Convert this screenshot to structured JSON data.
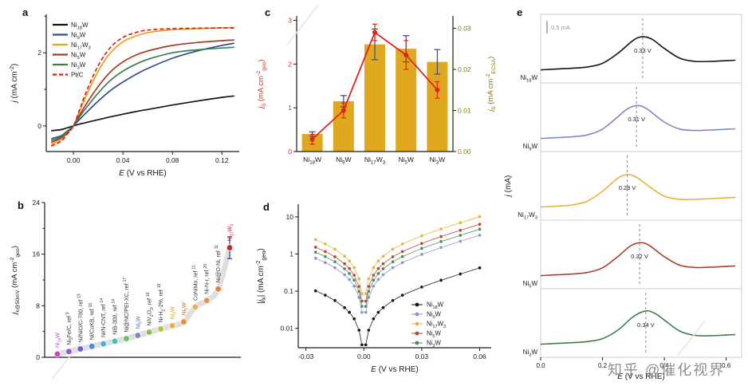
{
  "watermark": {
    "text": "知乎 @催化视界",
    "color": "#8f8f8f"
  },
  "chart_data": [
    {
      "panel": "a",
      "type": "line",
      "xlabel": "*{E} (V vs RHE)",
      "ylabel": "*{j} (mA cm^{-2})",
      "xlim": [
        -0.022,
        0.134
      ],
      "ylim": [
        -0.7,
        3.05
      ],
      "xticks": [
        0,
        0.04,
        0.08,
        0.12
      ],
      "xtick_labels": [
        "0.00",
        "0.04",
        "0.08",
        "0.12"
      ],
      "yticks": [
        0,
        2
      ],
      "yticks_minor": [
        1,
        3
      ],
      "series": [
        {
          "name": "Ni_{18}W",
          "color": "#141414",
          "dash": "none",
          "x": [
            -0.018,
            -0.01,
            -0.005,
            0,
            0.005,
            0.01,
            0.02,
            0.03,
            0.04,
            0.05,
            0.06,
            0.08,
            0.1,
            0.12,
            0.13
          ],
          "y": [
            -0.13,
            -0.1,
            -0.05,
            0,
            0.05,
            0.09,
            0.17,
            0.25,
            0.32,
            0.39,
            0.45,
            0.57,
            0.68,
            0.78,
            0.82
          ]
        },
        {
          "name": "Ni_{9}W",
          "color": "#2f4f8f",
          "dash": "none",
          "x": [
            -0.018,
            -0.01,
            -0.005,
            0,
            0.005,
            0.01,
            0.02,
            0.03,
            0.04,
            0.05,
            0.06,
            0.08,
            0.1,
            0.12,
            0.13
          ],
          "y": [
            -0.35,
            -0.27,
            -0.14,
            0,
            0.18,
            0.35,
            0.68,
            0.97,
            1.2,
            1.4,
            1.57,
            1.85,
            2.05,
            2.2,
            2.26
          ]
        },
        {
          "name": "Ni_{17}W_{3}",
          "color": "#e8a01e",
          "dash": "none",
          "x": [
            -0.018,
            -0.01,
            -0.005,
            0,
            0.005,
            0.01,
            0.02,
            0.03,
            0.04,
            0.05,
            0.06,
            0.08,
            0.1,
            0.12,
            0.13
          ],
          "y": [
            -0.5,
            -0.38,
            -0.2,
            0,
            0.4,
            0.8,
            1.5,
            2.0,
            2.3,
            2.45,
            2.55,
            2.63,
            2.66,
            2.68,
            2.68
          ]
        },
        {
          "name": "Ni_{5}W",
          "color": "#a63a24",
          "dash": "none",
          "x": [
            -0.018,
            -0.01,
            -0.005,
            0,
            0.005,
            0.01,
            0.02,
            0.03,
            0.04,
            0.05,
            0.06,
            0.08,
            0.1,
            0.12,
            0.13
          ],
          "y": [
            -0.45,
            -0.33,
            -0.17,
            0,
            0.3,
            0.58,
            1.08,
            1.48,
            1.75,
            1.93,
            2.05,
            2.2,
            2.28,
            2.33,
            2.35
          ]
        },
        {
          "name": "Ni_{3}W",
          "color": "#3e7d4e",
          "dash": "none",
          "x": [
            -0.018,
            -0.01,
            -0.005,
            0,
            0.005,
            0.01,
            0.02,
            0.03,
            0.04,
            0.05,
            0.06,
            0.08,
            0.1,
            0.12,
            0.13
          ],
          "y": [
            -0.4,
            -0.3,
            -0.15,
            0,
            0.25,
            0.48,
            0.9,
            1.25,
            1.5,
            1.68,
            1.82,
            2.0,
            2.08,
            2.13,
            2.15
          ]
        },
        {
          "name": "Pt/C",
          "color": "#e01e14",
          "dash": "5,3",
          "x": [
            -0.018,
            -0.01,
            -0.005,
            0,
            0.005,
            0.01,
            0.02,
            0.03,
            0.04,
            0.05,
            0.06,
            0.08,
            0.1,
            0.12,
            0.13
          ],
          "y": [
            -0.55,
            -0.42,
            -0.22,
            0,
            0.45,
            0.9,
            1.65,
            2.15,
            2.42,
            2.55,
            2.62,
            2.66,
            2.67,
            2.68,
            2.68
          ]
        }
      ]
    },
    {
      "panel": "b",
      "type": "scatter",
      "ylabel": "*{j}_{k@50mV} (mA cm^{-2}_{geo})",
      "ylim": [
        0,
        24
      ],
      "yticks": [
        0,
        8,
        16,
        24
      ],
      "yticks_minor": [
        4,
        12,
        20
      ],
      "trend_color": "#d4d4d4",
      "points": [
        {
          "label": "Ni_{18}W",
          "value": 0.5,
          "color": "#c24bc2",
          "label_color": "#c24bc2"
        },
        {
          "label": "Ni_{3}Fe/C, ref ^{9}",
          "value": 0.9,
          "color": "#9357cf",
          "label_color": "#333333"
        },
        {
          "label": "Ni/NiO/C-700, ref ^{13}",
          "value": 1.3,
          "color": "#6a5fd8",
          "label_color": "#333333"
        },
        {
          "label": "Ni/CuKB, ref ^{10}",
          "value": 1.7,
          "color": "#4f86e0",
          "label_color": "#333333"
        },
        {
          "label": "Ni/N-CNT, ref ^{14}",
          "value": 2.1,
          "color": "#41b4da",
          "label_color": "#333333"
        },
        {
          "label": "NiB-300, ref ^{14}",
          "value": 2.5,
          "color": "#3fc4a6",
          "label_color": "#333333"
        },
        {
          "label": "Ni@NC/PEI-XC, ref ^{17}",
          "value": 2.9,
          "color": "#63c463",
          "label_color": "#333333"
        },
        {
          "label": "Ni_{9}W",
          "value": 3.4,
          "color": "#7e88c4",
          "label_color": "#5b6bb5"
        },
        {
          "label": "NiV_{2}O_{3}, ref ^{16}",
          "value": 3.9,
          "color": "#8fbf4d",
          "label_color": "#333333"
        },
        {
          "label": "Ni-H_{2}-2%, ref ^{19}",
          "value": 4.4,
          "color": "#b8c232",
          "label_color": "#333333"
        },
        {
          "label": "Ni_{3}W",
          "value": 4.9,
          "color": "#e8b33a",
          "label_color": "#d8a21e"
        },
        {
          "label": "Ni_{5}W",
          "value": 5.5,
          "color": "#e89030",
          "label_color": "#d2691e"
        },
        {
          "label": "CoNiMo, ref ^{11}",
          "value": 7.8,
          "color": "#f2a85c",
          "label_color": "#333333"
        },
        {
          "label": "Ni-N-r, ref ^{20}",
          "value": 8.8,
          "color": "#f09048",
          "label_color": "#333333"
        },
        {
          "label": "Ni@O-Ni, ref ^{11}",
          "value": 10.6,
          "color": "#ee7f35",
          "label_color": "#333333"
        },
        {
          "label": "Ni_{17}W_{3}",
          "value": 17.0,
          "color": "#c0282a",
          "label_color": "#c0282a",
          "error": 1.7
        }
      ]
    },
    {
      "panel": "c",
      "type": "bar",
      "categories": [
        "Ni_{18}W",
        "Ni_{9}W",
        "Ni_{17}W_{3}",
        "Ni_{5}W",
        "Ni_{3}W"
      ],
      "bars": {
        "label": "*{j}_{0} (mA cm^{-2}_{geo})",
        "axis_color": "#d2321e",
        "color": "#e0a81f",
        "error_color": "#44557a",
        "values": [
          0.4,
          1.15,
          2.45,
          2.35,
          2.05
        ],
        "errors": [
          0.05,
          0.13,
          0.35,
          0.3,
          0.28
        ],
        "ylim": [
          0,
          3.1
        ],
        "yticks": [
          0,
          1,
          2,
          3
        ]
      },
      "line": {
        "label": "*{j}_{0} (mA cm^{-2}_{ECSA})",
        "axis_color": "#8a7a10",
        "color": "#e02318",
        "values": [
          0.003,
          0.01,
          0.029,
          0.0235,
          0.015
        ],
        "errors": [
          0.0012,
          0.0018,
          0.002,
          0.0035,
          0.002
        ],
        "ylim": [
          0,
          0.033
        ],
        "yticks": [
          0,
          0.01,
          0.02,
          0.03
        ],
        "ytick_labels": [
          "0.00",
          "0.01",
          "0.02",
          "0.03"
        ]
      }
    },
    {
      "panel": "d",
      "type": "line",
      "scale": "log-y",
      "xlabel": "*{E} (V vs RHE)",
      "ylabel": "|*{j}_{k}| (mA cm^{-2}_{geo})",
      "xlim": [
        -0.034,
        0.066
      ],
      "xticks": [
        -0.03,
        0,
        0.03,
        0.06
      ],
      "xtick_labels": [
        "-0.03",
        "0.00",
        "0.03",
        "0.06"
      ],
      "ylim_log": [
        0.003,
        22
      ],
      "yticks": [
        0.01,
        0.1,
        1,
        10
      ],
      "ytick_labels": [
        "0.01",
        "0.1",
        "1",
        "10"
      ],
      "series": [
        {
          "name": "Ni_{18}W",
          "color": "#141414",
          "x": [
            -0.025,
            -0.02,
            -0.015,
            -0.01,
            -0.0075,
            -0.005,
            -0.0025,
            -0.001,
            0.001,
            0.0025,
            0.005,
            0.0075,
            0.01,
            0.015,
            0.02,
            0.03,
            0.04,
            0.05,
            0.06
          ],
          "y": [
            0.102,
            0.078,
            0.056,
            0.036,
            0.027,
            0.018,
            0.0089,
            0.0036,
            0.0036,
            0.0089,
            0.018,
            0.027,
            0.036,
            0.056,
            0.078,
            0.129,
            0.197,
            0.29,
            0.423
          ]
        },
        {
          "name": "Ni_{9}W",
          "color": "#8a94cc",
          "x": [
            -0.025,
            -0.02,
            -0.015,
            -0.01,
            -0.0075,
            -0.005,
            -0.0025,
            -0.001,
            0.001,
            0.0025,
            0.005,
            0.0075,
            0.01,
            0.015,
            0.02,
            0.03,
            0.04,
            0.05,
            0.06
          ],
          "y": [
            0.773,
            0.59,
            0.427,
            0.277,
            0.206,
            0.136,
            0.068,
            0.027,
            0.027,
            0.068,
            0.136,
            0.206,
            0.277,
            0.427,
            0.59,
            0.979,
            1.497,
            2.204,
            3.211
          ]
        },
        {
          "name": "Ni_{17}W_{3}",
          "color": "#e8b33a",
          "x": [
            -0.025,
            -0.02,
            -0.015,
            -0.01,
            -0.0075,
            -0.005,
            -0.0025,
            -0.001,
            0.001,
            0.0025,
            0.005,
            0.0075,
            0.01,
            0.015,
            0.02,
            0.03,
            0.04,
            0.05,
            0.06
          ],
          "y": [
            2.44,
            1.862,
            1.348,
            0.875,
            0.651,
            0.431,
            0.215,
            0.086,
            0.086,
            0.215,
            0.431,
            0.651,
            0.875,
            1.348,
            1.862,
            3.091,
            4.728,
            6.96,
            10.14
          ]
        },
        {
          "name": "Ni_{5}W",
          "color": "#b5452e",
          "x": [
            -0.025,
            -0.02,
            -0.015,
            -0.01,
            -0.0075,
            -0.005,
            -0.0025,
            -0.001,
            0.001,
            0.0025,
            0.005,
            0.0075,
            0.01,
            0.015,
            0.02,
            0.03,
            0.04,
            0.05,
            0.06
          ],
          "y": [
            1.525,
            1.164,
            0.842,
            0.547,
            0.407,
            0.269,
            0.134,
            0.054,
            0.054,
            0.134,
            0.269,
            0.407,
            0.547,
            0.842,
            1.164,
            1.932,
            2.955,
            4.35,
            6.338
          ]
        },
        {
          "name": "Ni_{3}W",
          "color": "#4a8a57",
          "x": [
            -0.025,
            -0.02,
            -0.015,
            -0.01,
            -0.0075,
            -0.005,
            -0.0025,
            -0.001,
            0.001,
            0.0025,
            0.005,
            0.0075,
            0.01,
            0.015,
            0.02,
            0.03,
            0.04,
            0.05,
            0.06
          ],
          "y": [
            1.118,
            0.854,
            0.618,
            0.401,
            0.298,
            0.198,
            0.098,
            0.039,
            0.039,
            0.098,
            0.198,
            0.298,
            0.401,
            0.618,
            0.854,
            1.417,
            2.167,
            3.19,
            4.648
          ]
        }
      ]
    },
    {
      "panel": "e",
      "type": "line",
      "subtype": "stacked-voltammograms",
      "xlabel": "*{E} (V vs RHE)",
      "ylabel": "*{j} (mA)",
      "scalebar": "0.5 mA",
      "xlim": [
        0,
        0.65
      ],
      "xticks": [
        0,
        0.2,
        0.4,
        0.6
      ],
      "xtick_labels": [
        "0.0",
        "0.2",
        "0.4",
        "0.6"
      ],
      "traces": [
        {
          "name": "Ni_{18}W",
          "color": "#141414",
          "peak": 0.33,
          "peak_label": "0.33 V",
          "x": [
            0,
            0.05,
            0.1,
            0.15,
            0.2,
            0.25,
            0.3,
            0.33,
            0.36,
            0.4,
            0.45,
            0.5,
            0.55,
            0.6,
            0.63
          ],
          "y": [
            0.1,
            0.115,
            0.131,
            0.155,
            0.228,
            0.425,
            0.682,
            0.749,
            0.7,
            0.52,
            0.328,
            0.266,
            0.266,
            0.28,
            0.289
          ]
        },
        {
          "name": "Ni_{9}W",
          "color": "#7e88c4",
          "peak": 0.31,
          "peak_label": "0.31 V",
          "x": [
            0,
            0.05,
            0.1,
            0.15,
            0.2,
            0.25,
            0.28,
            0.31,
            0.34,
            0.4,
            0.45,
            0.5,
            0.55,
            0.6,
            0.63
          ],
          "y": [
            0.1,
            0.115,
            0.132,
            0.168,
            0.283,
            0.528,
            0.676,
            0.743,
            0.694,
            0.422,
            0.284,
            0.256,
            0.265,
            0.28,
            0.289
          ]
        },
        {
          "name": "Ni_{17}W_{3}",
          "color": "#e8b33a",
          "peak": 0.28,
          "peak_label": "0.28 V",
          "x": [
            0,
            0.05,
            0.1,
            0.15,
            0.2,
            0.25,
            0.28,
            0.31,
            0.35,
            0.4,
            0.45,
            0.5,
            0.55,
            0.6,
            0.63
          ],
          "y": [
            0.1,
            0.116,
            0.14,
            0.213,
            0.41,
            0.667,
            0.734,
            0.685,
            0.505,
            0.313,
            0.251,
            0.252,
            0.265,
            0.28,
            0.289
          ]
        },
        {
          "name": "Ni_{5}W",
          "color": "#a8402c",
          "peak": 0.32,
          "peak_label": "0.32 V",
          "x": [
            0,
            0.05,
            0.1,
            0.15,
            0.2,
            0.25,
            0.29,
            0.32,
            0.35,
            0.4,
            0.45,
            0.5,
            0.55,
            0.6,
            0.63
          ],
          "y": [
            0.1,
            0.115,
            0.131,
            0.161,
            0.253,
            0.475,
            0.679,
            0.746,
            0.697,
            0.47,
            0.303,
            0.26,
            0.266,
            0.28,
            0.289
          ]
        },
        {
          "name": "Ni_{3}W",
          "color": "#3f7d4f",
          "peak": 0.34,
          "peak_label": "0.34 V",
          "x": [
            0,
            0.05,
            0.1,
            0.15,
            0.2,
            0.25,
            0.3,
            0.34,
            0.37,
            0.4,
            0.45,
            0.5,
            0.55,
            0.6,
            0.63
          ],
          "y": [
            0.1,
            0.115,
            0.13,
            0.151,
            0.209,
            0.377,
            0.642,
            0.752,
            0.703,
            0.573,
            0.358,
            0.273,
            0.267,
            0.28,
            0.289
          ]
        }
      ]
    }
  ]
}
